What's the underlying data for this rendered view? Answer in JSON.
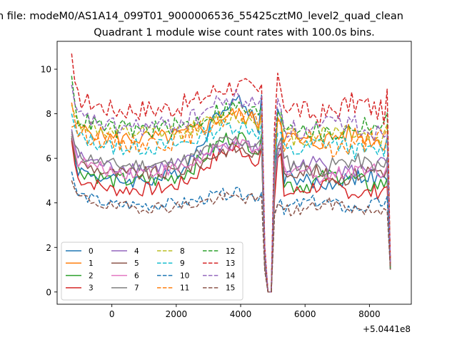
{
  "chart_data": {
    "type": "line",
    "suptitle": "n file: modeM0/AS1A14_099T01_9000006536_55425cztM0_level2_quad_clean",
    "title": "Quadrant 1 module wise count rates with 100.0s bins.",
    "xlabel": "",
    "ylabel": "",
    "x_offset_label": "+5.0441e8",
    "xlim": [
      -1700,
      9300
    ],
    "ylim": [
      -0.55,
      11.25
    ],
    "xticks": [
      0,
      2000,
      4000,
      6000,
      8000
    ],
    "xtick_labels": [
      "0",
      "2000",
      "4000",
      "6000",
      "8000"
    ],
    "yticks": [
      0,
      2,
      4,
      6,
      8,
      10
    ],
    "ytick_labels": [
      "0",
      "2",
      "4",
      "6",
      "8",
      "10"
    ],
    "x_start": -1250,
    "x_step": 100,
    "dip": {
      "drop_start": 4650,
      "zero_start": 4800,
      "zero_end": 4950,
      "recover": 5100
    },
    "legend": {
      "position": "lower-left",
      "columns": 4
    },
    "series": [
      {
        "name": "0",
        "color": "#1f77b4",
        "style": "solid",
        "start": 6.9,
        "base": 5.0,
        "amp": 0.3,
        "seed": 1,
        "peak": 9.8
      },
      {
        "name": "1",
        "color": "#ff7f0e",
        "style": "solid",
        "start": 7.4,
        "base": 6.9,
        "amp": 0.35,
        "seed": 2,
        "peak": 8.3
      },
      {
        "name": "2",
        "color": "#2ca02c",
        "style": "solid",
        "start": 7.0,
        "base": 5.0,
        "amp": 0.35,
        "seed": 3,
        "peak": 7.6
      },
      {
        "name": "3",
        "color": "#d62728",
        "style": "solid",
        "start": 6.8,
        "base": 4.6,
        "amp": 0.3,
        "seed": 4,
        "peak": 7.0
      },
      {
        "name": "4",
        "color": "#9467bd",
        "style": "solid",
        "start": 7.3,
        "base": 5.6,
        "amp": 0.3,
        "seed": 5,
        "peak": 7.0
      },
      {
        "name": "5",
        "color": "#8c564b",
        "style": "solid",
        "start": 6.9,
        "base": 5.3,
        "amp": 0.3,
        "seed": 6,
        "peak": 6.8
      },
      {
        "name": "6",
        "color": "#e377c2",
        "style": "solid",
        "start": 7.1,
        "base": 5.4,
        "amp": 0.3,
        "seed": 7,
        "peak": 7.0
      },
      {
        "name": "7",
        "color": "#7f7f7f",
        "style": "solid",
        "start": 7.2,
        "base": 5.7,
        "amp": 0.3,
        "seed": 8,
        "peak": 7.2
      },
      {
        "name": "8",
        "color": "#bcbd22",
        "style": "dashed",
        "start": 8.4,
        "base": 7.1,
        "amp": 0.35,
        "seed": 9,
        "peak": 8.1
      },
      {
        "name": "9",
        "color": "#17becf",
        "style": "dashed",
        "start": 8.0,
        "base": 6.5,
        "amp": 0.35,
        "seed": 10,
        "peak": 7.8
      },
      {
        "name": "10",
        "color": "#1f77b4",
        "style": "dashed",
        "start": 5.4,
        "base": 3.9,
        "amp": 0.25,
        "seed": 11,
        "peak": 4.6
      },
      {
        "name": "11",
        "color": "#ff7f0e",
        "style": "dashed",
        "start": 8.5,
        "base": 6.7,
        "amp": 0.4,
        "seed": 12,
        "peak": 8.3
      },
      {
        "name": "12",
        "color": "#2ca02c",
        "style": "dashed",
        "start": 9.7,
        "base": 7.3,
        "amp": 0.4,
        "seed": 13,
        "peak": 8.6
      },
      {
        "name": "13",
        "color": "#d62728",
        "style": "dashed",
        "start": 10.7,
        "base": 8.2,
        "amp": 0.45,
        "seed": 14,
        "peak": 9.6
      },
      {
        "name": "14",
        "color": "#9467bd",
        "style": "dashed",
        "start": 9.3,
        "base": 7.4,
        "amp": 0.4,
        "seed": 15,
        "peak": 9.1
      },
      {
        "name": "15",
        "color": "#8c564b",
        "style": "dashed",
        "start": 5.0,
        "base": 3.8,
        "amp": 0.25,
        "seed": 16,
        "peak": 4.4
      }
    ]
  }
}
